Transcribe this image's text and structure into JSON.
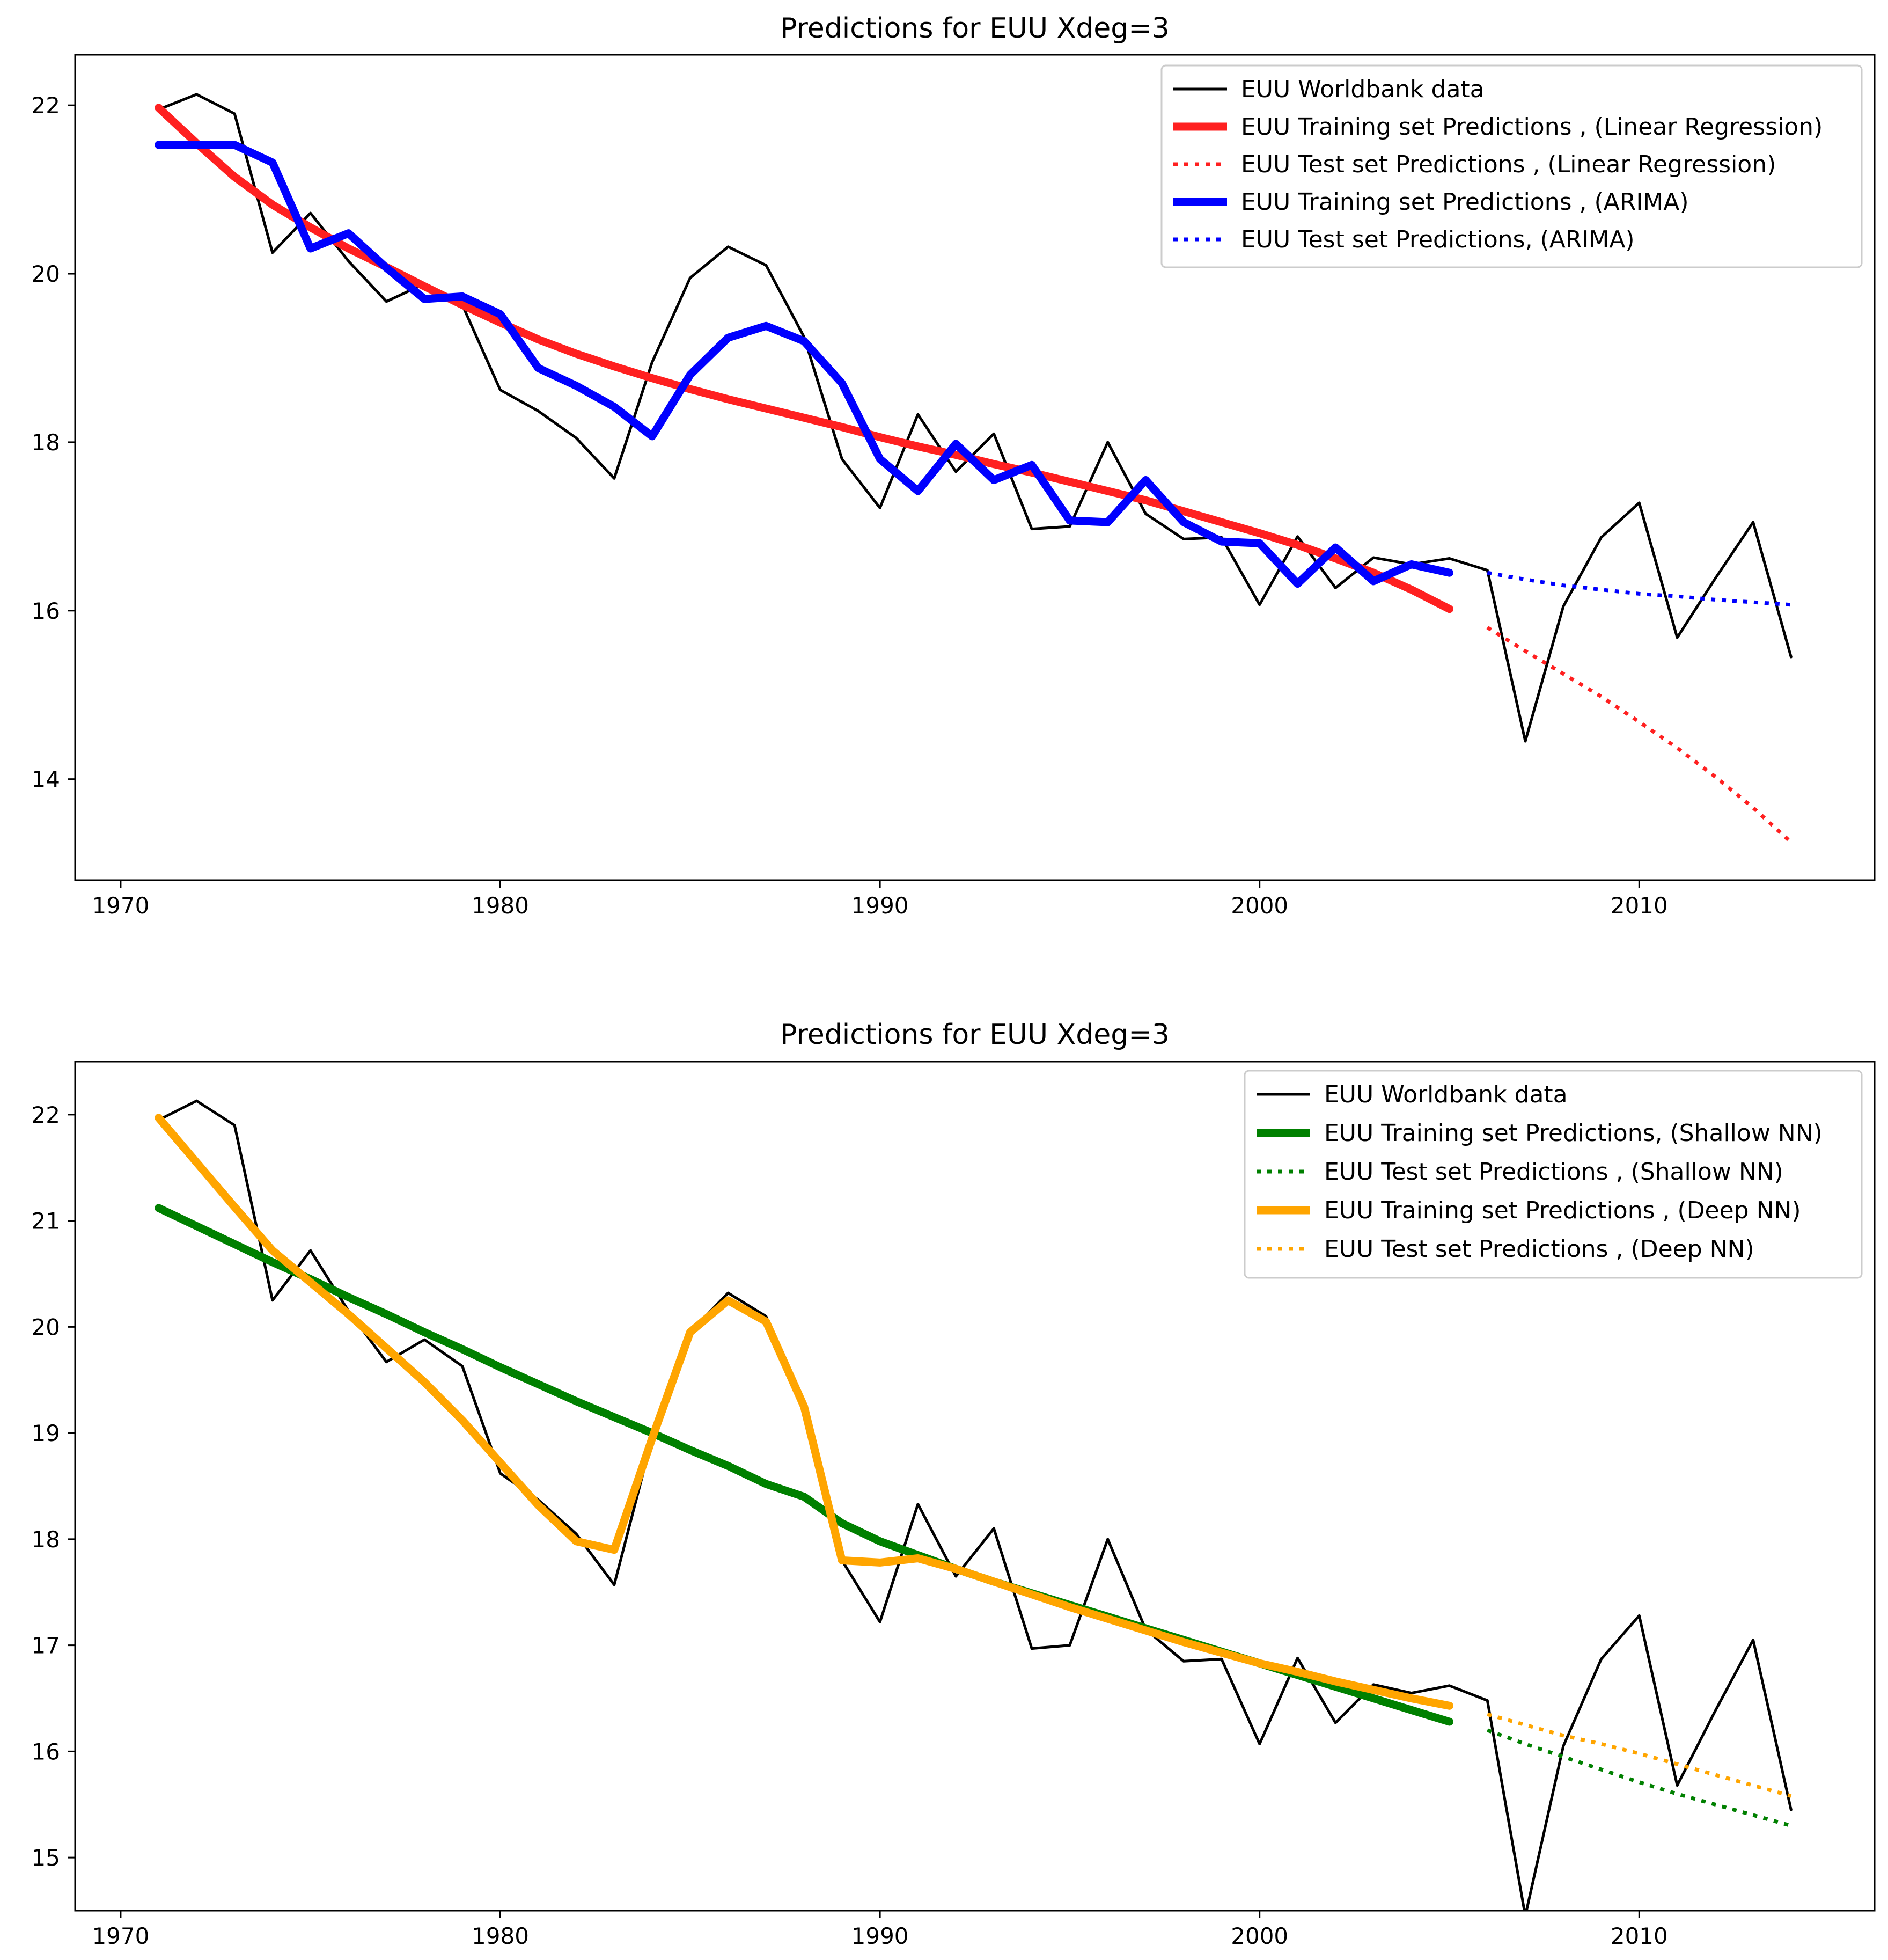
{
  "chart_data": [
    {
      "type": "line",
      "title": "Predictions for EUU  Xdeg=3",
      "xlabel": "",
      "ylabel": "",
      "xlim": [
        1968.8,
        2016.2
      ],
      "ylim": [
        12.8,
        22.6
      ],
      "xticks": [
        1970,
        1980,
        1990,
        2000,
        2010
      ],
      "yticks": [
        14,
        16,
        18,
        20,
        22
      ],
      "grid": false,
      "legend_position": "top-right",
      "series": [
        {
          "name": "EUU Worldbank data",
          "color": "#000000",
          "style": "solid",
          "width": "thin",
          "x": [
            1971,
            1972,
            1973,
            1974,
            1975,
            1976,
            1977,
            1978,
            1979,
            1980,
            1981,
            1982,
            1983,
            1984,
            1985,
            1986,
            1987,
            1988,
            1989,
            1990,
            1991,
            1992,
            1993,
            1994,
            1995,
            1996,
            1997,
            1998,
            1999,
            2000,
            2001,
            2002,
            2003,
            2004,
            2005,
            2006,
            2007,
            2008,
            2009,
            2010,
            2011,
            2012,
            2013,
            2014
          ],
          "y": [
            21.95,
            22.13,
            21.9,
            20.25,
            20.72,
            20.15,
            19.67,
            19.88,
            19.63,
            18.62,
            18.37,
            18.05,
            17.57,
            18.95,
            19.95,
            20.32,
            20.1,
            19.25,
            17.8,
            17.22,
            18.33,
            17.65,
            18.1,
            16.97,
            17.0,
            18.0,
            17.15,
            16.85,
            16.87,
            16.07,
            16.88,
            16.27,
            16.63,
            16.55,
            16.62,
            16.48,
            14.45,
            16.05,
            16.87,
            17.28,
            15.68,
            16.38,
            17.05,
            15.45
          ]
        },
        {
          "name": "EUU Training set Predictions , (Linear Regression)",
          "color": "#ff2020",
          "style": "solid",
          "width": "thick",
          "x": [
            1971,
            1972,
            1973,
            1974,
            1975,
            1976,
            1977,
            1978,
            1979,
            1980,
            1981,
            1982,
            1983,
            1984,
            1985,
            1986,
            1987,
            1988,
            1989,
            1990,
            1991,
            1992,
            1993,
            1994,
            1995,
            1996,
            1997,
            1998,
            1999,
            2000,
            2001,
            2002,
            2003,
            2004,
            2005
          ],
          "y": [
            21.97,
            21.55,
            21.15,
            20.82,
            20.55,
            20.3,
            20.08,
            19.85,
            19.63,
            19.42,
            19.22,
            19.05,
            18.9,
            18.76,
            18.63,
            18.51,
            18.4,
            18.29,
            18.18,
            18.06,
            17.95,
            17.85,
            17.74,
            17.64,
            17.53,
            17.42,
            17.31,
            17.18,
            17.05,
            16.92,
            16.78,
            16.62,
            16.45,
            16.25,
            16.02
          ]
        },
        {
          "name": "EUU Test set Predictions , (Linear Regression)",
          "color": "#ff2020",
          "style": "dotted",
          "width": "medium",
          "x": [
            2006,
            2007,
            2008,
            2009,
            2010,
            2011,
            2012,
            2013,
            2014
          ],
          "y": [
            15.8,
            15.52,
            15.25,
            14.98,
            14.68,
            14.37,
            14.03,
            13.66,
            13.25
          ]
        },
        {
          "name": "EUU Training set Predictions , (ARIMA)",
          "color": "#0000ff",
          "style": "solid",
          "width": "thick",
          "x": [
            1971,
            1972,
            1973,
            1974,
            1975,
            1976,
            1977,
            1978,
            1979,
            1980,
            1981,
            1982,
            1983,
            1984,
            1985,
            1986,
            1987,
            1988,
            1989,
            1990,
            1991,
            1992,
            1993,
            1994,
            1995,
            1996,
            1997,
            1998,
            1999,
            2000,
            2001,
            2002,
            2003,
            2004,
            2005
          ],
          "y": [
            21.53,
            21.53,
            21.53,
            21.32,
            20.3,
            20.48,
            20.07,
            19.7,
            19.73,
            19.52,
            18.88,
            18.67,
            18.42,
            18.07,
            18.8,
            19.24,
            19.38,
            19.2,
            18.7,
            17.8,
            17.42,
            17.98,
            17.55,
            17.73,
            17.07,
            17.05,
            17.55,
            17.05,
            16.82,
            16.8,
            16.32,
            16.75,
            16.35,
            16.55,
            16.45
          ]
        },
        {
          "name": "EUU Test set Predictions, (ARIMA)",
          "color": "#0000ff",
          "style": "dotted",
          "width": "medium",
          "x": [
            2006,
            2007,
            2008,
            2009,
            2010,
            2011,
            2012,
            2013,
            2014
          ],
          "y": [
            16.45,
            16.37,
            16.3,
            16.25,
            16.2,
            16.17,
            16.13,
            16.1,
            16.07
          ]
        }
      ]
    },
    {
      "type": "line",
      "title": "Predictions for EUU  Xdeg=3",
      "xlabel": "",
      "ylabel": "",
      "xlim": [
        1968.8,
        2016.2
      ],
      "ylim": [
        14.5,
        22.5
      ],
      "xticks": [
        1970,
        1980,
        1990,
        2000,
        2010
      ],
      "yticks": [
        15,
        16,
        17,
        18,
        19,
        20,
        21,
        22
      ],
      "grid": false,
      "legend_position": "top-right",
      "series": [
        {
          "name": "EUU Worldbank data",
          "color": "#000000",
          "style": "solid",
          "width": "thin",
          "x": [
            1971,
            1972,
            1973,
            1974,
            1975,
            1976,
            1977,
            1978,
            1979,
            1980,
            1981,
            1982,
            1983,
            1984,
            1985,
            1986,
            1987,
            1988,
            1989,
            1990,
            1991,
            1992,
            1993,
            1994,
            1995,
            1996,
            1997,
            1998,
            1999,
            2000,
            2001,
            2002,
            2003,
            2004,
            2005,
            2006,
            2007,
            2008,
            2009,
            2010,
            2011,
            2012,
            2013,
            2014
          ],
          "y": [
            21.95,
            22.13,
            21.9,
            20.25,
            20.72,
            20.15,
            19.67,
            19.88,
            19.63,
            18.62,
            18.37,
            18.05,
            17.57,
            18.95,
            19.95,
            20.32,
            20.1,
            19.25,
            17.8,
            17.22,
            18.33,
            17.65,
            18.1,
            16.97,
            17.0,
            18.0,
            17.15,
            16.85,
            16.87,
            16.07,
            16.88,
            16.27,
            16.63,
            16.55,
            16.62,
            16.48,
            14.45,
            16.05,
            16.87,
            17.28,
            15.68,
            16.38,
            17.05,
            15.45
          ]
        },
        {
          "name": "EUU Training set Predictions, (Shallow NN)",
          "color": "#008000",
          "style": "solid",
          "width": "thick",
          "x": [
            1971,
            1972,
            1973,
            1974,
            1975,
            1976,
            1977,
            1978,
            1979,
            1980,
            1981,
            1982,
            1983,
            1984,
            1985,
            1986,
            1987,
            1988,
            1989,
            1990,
            1991,
            1992,
            1993,
            1994,
            1995,
            1996,
            1997,
            1998,
            1999,
            2000,
            2001,
            2002,
            2003,
            2004,
            2005
          ],
          "y": [
            21.12,
            20.95,
            20.78,
            20.61,
            20.45,
            20.28,
            20.12,
            19.95,
            19.79,
            19.62,
            19.46,
            19.3,
            19.15,
            19.0,
            18.84,
            18.69,
            18.52,
            18.4,
            18.15,
            17.98,
            17.85,
            17.72,
            17.6,
            17.49,
            17.38,
            17.27,
            17.16,
            17.05,
            16.94,
            16.83,
            16.72,
            16.61,
            16.5,
            16.39,
            16.28
          ]
        },
        {
          "name": "EUU Test set Predictions , (Shallow NN)",
          "color": "#008000",
          "style": "dotted",
          "width": "medium",
          "x": [
            2006,
            2007,
            2008,
            2009,
            2010,
            2011,
            2012,
            2013,
            2014
          ],
          "y": [
            16.2,
            16.07,
            15.95,
            15.83,
            15.71,
            15.6,
            15.5,
            15.4,
            15.3
          ]
        },
        {
          "name": "EUU Training set Predictions , (Deep NN)",
          "color": "#ffa500",
          "style": "solid",
          "width": "thick",
          "x": [
            1971,
            1972,
            1973,
            1974,
            1975,
            1976,
            1977,
            1978,
            1979,
            1980,
            1981,
            1982,
            1983,
            1984,
            1985,
            1986,
            1987,
            1988,
            1989,
            1990,
            1991,
            1992,
            1993,
            1994,
            1995,
            1996,
            1997,
            1998,
            1999,
            2000,
            2001,
            2002,
            2003,
            2004,
            2005
          ],
          "y": [
            21.97,
            21.55,
            21.13,
            20.72,
            20.42,
            20.12,
            19.8,
            19.48,
            19.12,
            18.72,
            18.32,
            17.98,
            17.9,
            18.95,
            19.95,
            20.25,
            20.05,
            19.25,
            17.8,
            17.78,
            17.82,
            17.72,
            17.6,
            17.48,
            17.36,
            17.25,
            17.14,
            17.03,
            16.93,
            16.83,
            16.75,
            16.66,
            16.58,
            16.5,
            16.43
          ]
        },
        {
          "name": "EUU Test set Predictions , (Deep NN)",
          "color": "#ffa500",
          "style": "dotted",
          "width": "medium",
          "x": [
            2006,
            2007,
            2008,
            2009,
            2010,
            2011,
            2012,
            2013,
            2014
          ],
          "y": [
            16.35,
            16.25,
            16.15,
            16.07,
            15.98,
            15.88,
            15.78,
            15.68,
            15.58
          ]
        }
      ]
    }
  ]
}
